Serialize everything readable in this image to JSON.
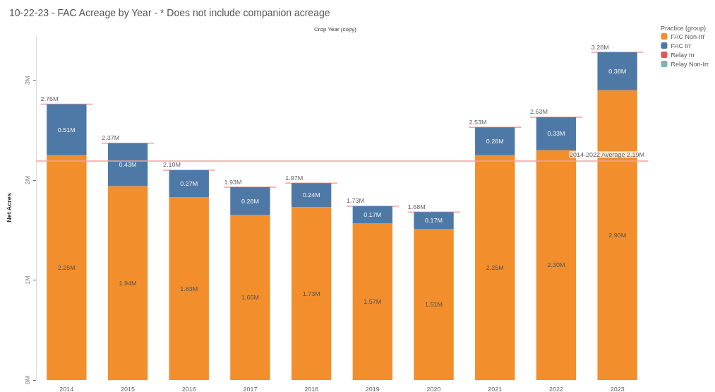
{
  "chart_data": {
    "type": "bar",
    "stacked": true,
    "title": "10-22-23 - FAC Acreage by Year - * Does not include companion acreage",
    "xlabel": "Crop Year (copy)",
    "ylabel": "Net Acres",
    "legend_title": "Practice (group)",
    "legend": "top right",
    "grid": false,
    "categories": [
      "2014",
      "2015",
      "2016",
      "2017",
      "2018",
      "2019",
      "2020",
      "2021",
      "2022",
      "2023"
    ],
    "series": [
      {
        "name": "FAC Non-Irr",
        "color": "#f28e2b",
        "values": [
          2.25,
          1.94,
          1.83,
          1.65,
          1.73,
          1.57,
          1.51,
          2.25,
          2.3,
          2.9
        ],
        "value_labels": [
          "2.25M",
          "1.94M",
          "1.83M",
          "1.65M",
          "1.73M",
          "1.57M",
          "1.51M",
          "2.25M",
          "2.30M",
          "2.90M"
        ]
      },
      {
        "name": "FAC Irr",
        "color": "#4e79a7",
        "values": [
          0.51,
          0.43,
          0.27,
          0.28,
          0.24,
          0.17,
          0.17,
          0.28,
          0.33,
          0.38
        ],
        "value_labels": [
          "0.51M",
          "0.43M",
          "0.27M",
          "0.28M",
          "0.24M",
          "0.17M",
          "0.17M",
          "0.28M",
          "0.33M",
          "0.38M"
        ]
      },
      {
        "name": "Relay Irr",
        "color": "#e15759",
        "values": [
          null,
          null,
          null,
          null,
          null,
          null,
          null,
          null,
          null,
          null
        ]
      },
      {
        "name": "Relay Non-Irr",
        "color": "#76b7b2",
        "values": [
          null,
          null,
          null,
          null,
          null,
          null,
          null,
          null,
          null,
          null
        ]
      }
    ],
    "totals": [
      "2.76M",
      "2.37M",
      "2.10M",
      "1.93M",
      "1.97M",
      "1.73M",
      "1.68M",
      "2.53M",
      "2.63M",
      "3.28M"
    ],
    "ylim": [
      0,
      3.45
    ],
    "yticks": [
      {
        "value": 0,
        "label": "0M"
      },
      {
        "value": 1,
        "label": "1M"
      },
      {
        "value": 2,
        "label": "2M"
      },
      {
        "value": 3,
        "label": "3M"
      }
    ],
    "ref_lines": [
      {
        "axis": "y",
        "value": 2.19,
        "label": "2014-2022 Average 2.19M",
        "color": "#f4a0a0"
      }
    ]
  }
}
